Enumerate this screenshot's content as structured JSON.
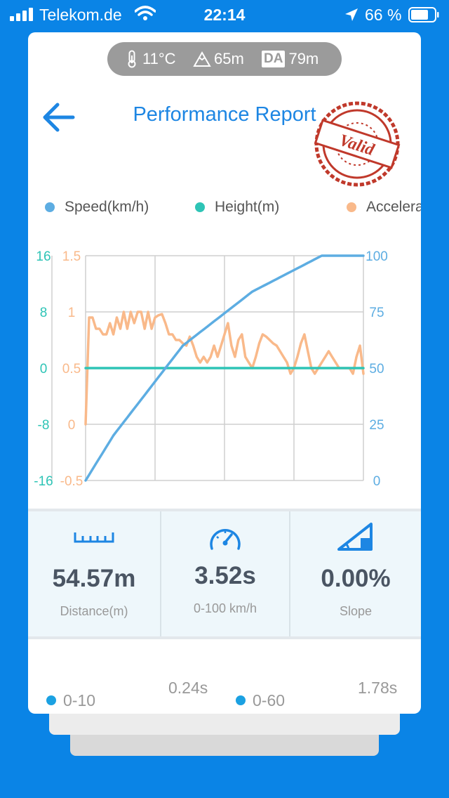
{
  "status_bar": {
    "carrier": "Telekom.de",
    "time": "22:14",
    "battery": "66 %",
    "icons": [
      "signal-icon",
      "wifi-icon",
      "location-arrow-icon",
      "battery-icon"
    ]
  },
  "conditions": {
    "temperature": "11°C",
    "altitude": "65m",
    "density_altitude_badge": "DA",
    "density_altitude": "79m",
    "icons": [
      "thermometer-icon",
      "mountain-icon"
    ]
  },
  "header": {
    "title": "Performance Report",
    "stamp": "Valid",
    "back_icon": "back-arrow-icon"
  },
  "legend": [
    {
      "label": "Speed(km/h)",
      "color": "#5dade2"
    },
    {
      "label": "Height(m)",
      "color": "#2ec4b6"
    },
    {
      "label": "Acceleration",
      "color": "#f9b98a"
    }
  ],
  "chart_data": {
    "type": "line",
    "x": [
      0,
      1,
      2,
      3,
      4,
      5,
      6,
      7,
      8,
      9,
      10,
      11,
      12,
      13,
      14,
      15,
      16,
      17,
      18,
      19,
      20,
      21,
      22,
      23,
      24,
      25,
      26,
      27,
      28,
      29,
      30,
      31,
      32,
      33,
      34,
      35,
      36,
      37,
      38,
      39,
      40,
      41,
      42,
      43,
      44,
      45,
      46,
      47,
      48,
      49,
      50,
      51,
      52,
      53,
      54,
      55,
      56,
      57,
      58,
      59,
      60,
      61,
      62,
      63,
      64,
      65,
      66,
      67,
      68,
      69,
      70,
      71,
      72,
      73,
      74,
      75,
      76,
      77,
      78,
      79,
      80
    ],
    "xlim": [
      0,
      80
    ],
    "grid": true,
    "axes": {
      "height_axis": {
        "ticks": [
          "16",
          "8",
          "0",
          "-8",
          "-16"
        ],
        "range": [
          -16,
          16
        ],
        "color": "#2ec4b6"
      },
      "accel_axis": {
        "ticks": [
          "1.5",
          "1",
          "0.5",
          "0",
          "-0.5"
        ],
        "range": [
          -0.5,
          1.5
        ],
        "color": "#f9b98a"
      },
      "speed_axis": {
        "ticks": [
          "100",
          "75",
          "50",
          "25",
          "0"
        ],
        "range": [
          0,
          100
        ],
        "color": "#5dade2"
      }
    },
    "series": [
      {
        "name": "Speed(km/h)",
        "axis": "speed_axis",
        "color": "#5dade2",
        "values": [
          0,
          2.5,
          5,
          7.5,
          10,
          12.5,
          15,
          17.5,
          20,
          22,
          24,
          26,
          28,
          30,
          32,
          34,
          36,
          38,
          40,
          42,
          44,
          46,
          48,
          50,
          52,
          54,
          56,
          58,
          60,
          61.2,
          62.4,
          63.6,
          64.8,
          66,
          67.2,
          68.4,
          69.6,
          70.8,
          72,
          73.2,
          74.4,
          75.6,
          76.8,
          78,
          79.2,
          80.4,
          81.6,
          82.8,
          84,
          84.8,
          85.6,
          86.4,
          87.2,
          88,
          88.8,
          89.6,
          90.4,
          91.2,
          92,
          92.8,
          93.6,
          94.4,
          95.2,
          96,
          96.8,
          97.6,
          98.4,
          99.2,
          100,
          100,
          100,
          100,
          100,
          100,
          100,
          100,
          100,
          100,
          100,
          100,
          100
        ]
      },
      {
        "name": "Height(m)",
        "axis": "height_axis",
        "color": "#2ec4b6",
        "values": [
          0,
          0,
          0,
          0,
          0,
          0,
          0,
          0,
          0,
          0,
          0,
          0,
          0,
          0,
          0,
          0,
          0,
          0,
          0,
          0,
          0,
          0,
          0,
          0,
          0,
          0,
          0,
          0,
          0,
          0,
          0,
          0,
          0,
          0,
          0,
          0,
          0,
          0,
          0,
          0,
          0,
          0,
          0,
          0,
          0,
          0,
          0,
          0,
          0,
          0,
          0,
          0,
          0,
          0,
          0,
          0,
          0,
          0,
          0,
          0,
          0,
          0,
          0,
          0,
          0,
          0,
          0,
          0,
          0,
          0,
          0,
          0,
          0,
          0,
          0,
          0,
          0,
          0,
          0,
          0,
          0
        ]
      },
      {
        "name": "Acceleration",
        "axis": "accel_axis",
        "color": "#f9b98a",
        "values": [
          0,
          0.95,
          0.95,
          0.85,
          0.85,
          0.8,
          0.8,
          0.9,
          0.8,
          0.95,
          0.85,
          1.0,
          0.85,
          1.0,
          0.9,
          1.0,
          1.0,
          0.85,
          1.0,
          0.85,
          0.95,
          0.97,
          0.98,
          0.9,
          0.8,
          0.8,
          0.75,
          0.75,
          0.72,
          0.7,
          0.78,
          0.7,
          0.6,
          0.55,
          0.6,
          0.55,
          0.6,
          0.7,
          0.6,
          0.7,
          0.8,
          0.9,
          0.7,
          0.6,
          0.75,
          0.8,
          0.6,
          0.55,
          0.5,
          0.6,
          0.72,
          0.8,
          0.78,
          0.75,
          0.72,
          0.7,
          0.65,
          0.6,
          0.55,
          0.45,
          0.5,
          0.6,
          0.72,
          0.8,
          0.65,
          0.5,
          0.45,
          0.5,
          0.55,
          0.6,
          0.65,
          0.6,
          0.55,
          0.5,
          0.5,
          0.5,
          0.5,
          0.45,
          0.6,
          0.7,
          0.45
        ]
      }
    ]
  },
  "stats": [
    {
      "icon": "ruler-icon",
      "value": "54.57m",
      "label": "Distance(m)"
    },
    {
      "icon": "speedometer-icon",
      "value": "3.52s",
      "label": "0-100 km/h"
    },
    {
      "icon": "slope-icon",
      "value": "0.00%",
      "label": "Slope"
    }
  ],
  "splits": [
    {
      "label": "0-10",
      "time": "0.24s"
    },
    {
      "label": "0-60",
      "time": "1.78s"
    }
  ]
}
